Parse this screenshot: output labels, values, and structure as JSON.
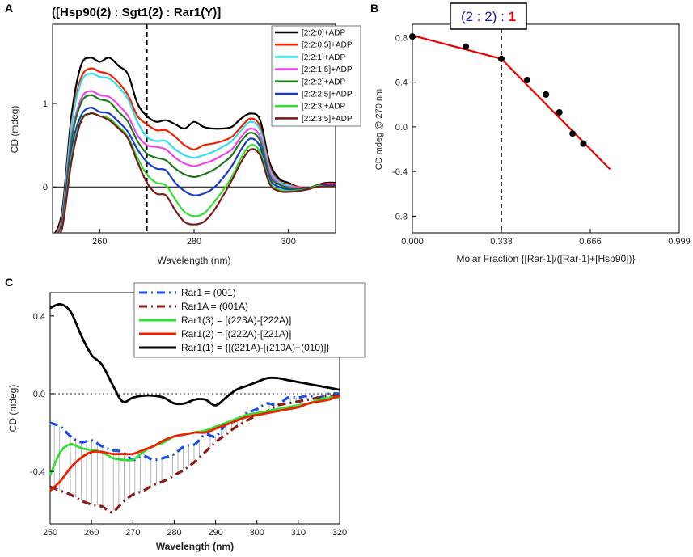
{
  "panel_labels": {
    "a": "A",
    "b": "B",
    "c": "C"
  },
  "chart_data": [
    {
      "panel": "A",
      "type": "line",
      "title": "([Hsp90(2) : Sgt1(2) : Rar1(Y)]",
      "xlabel": "Wavelength (nm)",
      "ylabel": "CD (mdeg)",
      "xlim": [
        250,
        310
      ],
      "ylim": [
        -0.55,
        1.95
      ],
      "xticks": [
        260,
        280,
        300
      ],
      "xtick_labels": [
        "260",
        "280",
        "300"
      ],
      "yticks": [
        0,
        1
      ],
      "ytick_labels": [
        "0",
        "1"
      ],
      "hline_zero": true,
      "vline_x": 270,
      "x": [
        250,
        252,
        254,
        256,
        258,
        260,
        262,
        264,
        266,
        268,
        270,
        272,
        274,
        276,
        278,
        280,
        282,
        284,
        286,
        288,
        290,
        292,
        294,
        296,
        298,
        300,
        302,
        304,
        306,
        308,
        310
      ],
      "series": [
        {
          "name": "[2:2:0]+ADP",
          "color": "#000000",
          "values": [
            -0.6,
            -0.3,
            0.85,
            1.45,
            1.55,
            1.5,
            1.55,
            1.45,
            1.35,
            1.0,
            0.85,
            0.78,
            0.8,
            0.75,
            0.7,
            0.78,
            0.72,
            0.7,
            0.7,
            0.72,
            0.82,
            0.88,
            0.8,
            0.3,
            0.1,
            0.05,
            0.0,
            -0.02,
            0.02,
            0.05,
            0.05
          ]
        },
        {
          "name": "[2:2:0.5]+ADP",
          "color": "#ee2200",
          "values": [
            -0.6,
            -0.35,
            0.75,
            1.3,
            1.42,
            1.38,
            1.35,
            1.25,
            1.1,
            0.85,
            0.75,
            0.68,
            0.68,
            0.6,
            0.5,
            0.45,
            0.5,
            0.52,
            0.55,
            0.6,
            0.72,
            0.82,
            0.72,
            0.25,
            0.07,
            0.03,
            0.0,
            -0.02,
            0.02,
            0.04,
            0.04
          ]
        },
        {
          "name": "[2:2:1]+ADP",
          "color": "#33e0e8",
          "values": [
            -0.6,
            -0.38,
            0.72,
            1.25,
            1.36,
            1.32,
            1.3,
            1.2,
            1.05,
            0.78,
            0.6,
            0.55,
            0.55,
            0.45,
            0.38,
            0.35,
            0.38,
            0.42,
            0.48,
            0.55,
            0.68,
            0.78,
            0.68,
            0.22,
            0.06,
            0.02,
            -0.01,
            -0.02,
            0.02,
            0.03,
            0.03
          ]
        },
        {
          "name": "[2:2:1.5]+ADP",
          "color": "#ee44ee",
          "values": [
            -0.6,
            -0.4,
            0.6,
            1.05,
            1.15,
            1.1,
            1.08,
            0.98,
            0.85,
            0.62,
            0.5,
            0.48,
            0.45,
            0.35,
            0.28,
            0.25,
            0.28,
            0.32,
            0.38,
            0.45,
            0.6,
            0.7,
            0.6,
            0.18,
            0.04,
            0.0,
            -0.01,
            -0.02,
            0.02,
            0.03,
            0.03
          ]
        },
        {
          "name": "[2:2:2]+ADP",
          "color": "#1a7a1a",
          "values": [
            -0.6,
            -0.42,
            0.55,
            1.0,
            1.1,
            1.05,
            1.02,
            0.9,
            0.78,
            0.55,
            0.4,
            0.35,
            0.32,
            0.22,
            0.15,
            0.12,
            0.15,
            0.2,
            0.28,
            0.38,
            0.55,
            0.65,
            0.55,
            0.14,
            0.03,
            -0.01,
            -0.02,
            -0.02,
            0.02,
            0.02,
            0.02
          ]
        },
        {
          "name": "[2:2:2.5]+ADP",
          "color": "#1a3acc",
          "values": [
            -0.6,
            -0.45,
            0.45,
            0.85,
            0.95,
            0.9,
            0.88,
            0.78,
            0.66,
            0.45,
            0.3,
            0.22,
            0.2,
            0.05,
            -0.05,
            -0.1,
            -0.08,
            -0.02,
            0.1,
            0.25,
            0.45,
            0.58,
            0.48,
            0.1,
            0.0,
            -0.03,
            -0.03,
            -0.03,
            0.01,
            0.02,
            0.02
          ]
        },
        {
          "name": "[2:2:3]+ADP",
          "color": "#33e033",
          "values": [
            -0.6,
            -0.48,
            0.35,
            0.8,
            0.88,
            0.85,
            0.82,
            0.72,
            0.6,
            0.35,
            0.15,
            0.05,
            0.02,
            -0.15,
            -0.3,
            -0.35,
            -0.32,
            -0.2,
            -0.05,
            0.12,
            0.35,
            0.5,
            0.42,
            0.06,
            -0.03,
            -0.05,
            -0.04,
            -0.03,
            0.01,
            0.01,
            0.01
          ]
        },
        {
          "name": "[2:2:3.5]+ADP",
          "color": "#7a1a1a",
          "values": [
            -0.6,
            -0.5,
            0.3,
            0.78,
            0.88,
            0.85,
            0.8,
            0.7,
            0.58,
            0.3,
            0.05,
            -0.08,
            -0.1,
            -0.28,
            -0.42,
            -0.45,
            -0.42,
            -0.3,
            -0.12,
            0.08,
            0.3,
            0.45,
            0.38,
            0.04,
            -0.05,
            -0.06,
            -0.05,
            -0.03,
            0.0,
            0.01,
            0.01
          ]
        }
      ]
    },
    {
      "panel": "B",
      "type": "scatter",
      "annotation": {
        "part1": "(2 : ",
        "part2": "2",
        "part3": ") : ",
        "part4": "1"
      },
      "xlabel": "Molar Fraction {[Rar-1]/([Rar-1]+[Hsp90])}",
      "ylabel": "CD mdeg @ 270 nm",
      "xlim": [
        0,
        0.999
      ],
      "ylim": [
        -0.95,
        0.92
      ],
      "xticks": [
        0,
        0.333,
        0.666,
        0.999
      ],
      "xtick_labels": [
        "0.000",
        "0.333",
        "0.666",
        "0.999"
      ],
      "yticks": [
        -0.8,
        -0.4,
        0.0,
        0.4,
        0.8
      ],
      "ytick_labels": [
        "-0.8",
        "-0.4",
        "0.0",
        "0.4",
        "0.8"
      ],
      "vline_x": 0.333,
      "points_x": [
        0.0,
        0.2,
        0.333,
        0.43,
        0.5,
        0.55,
        0.6,
        0.64
      ],
      "points_y": [
        0.81,
        0.72,
        0.61,
        0.42,
        0.29,
        0.13,
        -0.06,
        -0.15
      ],
      "fit_lines": [
        {
          "x": [
            0.0,
            0.333
          ],
          "y": [
            0.82,
            0.61
          ]
        },
        {
          "x": [
            0.333,
            0.74
          ],
          "y": [
            0.61,
            -0.38
          ]
        }
      ],
      "fit_color": "#ee0000"
    },
    {
      "panel": "C",
      "type": "line",
      "xlabel": "Wavelength (nm)",
      "ylabel": "CD (mdeg)",
      "xlim": [
        250,
        320
      ],
      "ylim": [
        -0.67,
        0.52
      ],
      "xticks": [
        250,
        260,
        270,
        280,
        290,
        300,
        310,
        320
      ],
      "xtick_labels": [
        "250",
        "260",
        "270",
        "280",
        "290",
        "300",
        "310",
        "320"
      ],
      "yticks": [
        -0.4,
        0.0,
        0.4
      ],
      "ytick_labels": [
        "-0.4",
        "0.0",
        "0.4"
      ],
      "dotted_zero": true,
      "x": [
        250,
        252.5,
        255,
        257.5,
        260,
        262.5,
        265,
        267.5,
        270,
        272.5,
        275,
        277.5,
        280,
        282.5,
        285,
        287.5,
        290,
        292.5,
        295,
        297.5,
        300,
        302.5,
        305,
        307.5,
        310,
        312.5,
        315,
        317.5,
        320
      ],
      "series": [
        {
          "name": "Rar1 = (001)",
          "color": "#1a4ee8",
          "dash": "dashdot",
          "values": [
            -0.15,
            -0.17,
            -0.22,
            -0.25,
            -0.24,
            -0.27,
            -0.29,
            -0.3,
            -0.34,
            -0.32,
            -0.34,
            -0.33,
            -0.31,
            -0.27,
            -0.26,
            -0.21,
            -0.22,
            -0.16,
            -0.14,
            -0.1,
            -0.08,
            -0.05,
            -0.06,
            -0.02,
            -0.02,
            -0.01,
            -0.02,
            0.0,
            0.0
          ]
        },
        {
          "name": "Rar1A = (001A)",
          "color": "#8b1a1a",
          "dash": "dashdot",
          "values": [
            -0.48,
            -0.5,
            -0.52,
            -0.55,
            -0.57,
            -0.58,
            -0.61,
            -0.56,
            -0.52,
            -0.5,
            -0.47,
            -0.45,
            -0.42,
            -0.39,
            -0.35,
            -0.3,
            -0.25,
            -0.21,
            -0.17,
            -0.14,
            -0.11,
            -0.09,
            -0.06,
            -0.05,
            -0.04,
            -0.03,
            -0.02,
            -0.01,
            -0.01
          ]
        },
        {
          "name": "Rar1(3) = [(223A)-[222A)]",
          "color": "#33dd33",
          "values": [
            -0.42,
            -0.3,
            -0.26,
            -0.28,
            -0.29,
            -0.3,
            -0.33,
            -0.34,
            -0.34,
            -0.3,
            -0.27,
            -0.25,
            -0.22,
            -0.21,
            -0.2,
            -0.19,
            -0.17,
            -0.15,
            -0.13,
            -0.11,
            -0.1,
            -0.09,
            -0.08,
            -0.07,
            -0.06,
            -0.05,
            -0.03,
            -0.02,
            -0.02
          ]
        },
        {
          "name": "Rar1(2) = [(222A)-[221A)]",
          "color": "#ee2200",
          "values": [
            -0.5,
            -0.45,
            -0.38,
            -0.33,
            -0.3,
            -0.3,
            -0.31,
            -0.31,
            -0.31,
            -0.29,
            -0.27,
            -0.24,
            -0.22,
            -0.21,
            -0.2,
            -0.2,
            -0.18,
            -0.16,
            -0.14,
            -0.12,
            -0.11,
            -0.1,
            -0.09,
            -0.08,
            -0.07,
            -0.05,
            -0.04,
            -0.03,
            -0.01
          ]
        },
        {
          "name": "Rar1(1) = {[(221A)-[(210A)+(010)]}",
          "color": "#000000",
          "values": [
            0.44,
            0.46,
            0.42,
            0.3,
            0.2,
            0.15,
            0.05,
            -0.04,
            -0.02,
            -0.01,
            -0.01,
            -0.02,
            -0.05,
            -0.05,
            -0.03,
            -0.03,
            -0.06,
            -0.02,
            0.02,
            0.04,
            0.06,
            0.08,
            0.08,
            0.07,
            0.06,
            0.05,
            0.04,
            0.03,
            0.02
          ]
        }
      ]
    }
  ]
}
